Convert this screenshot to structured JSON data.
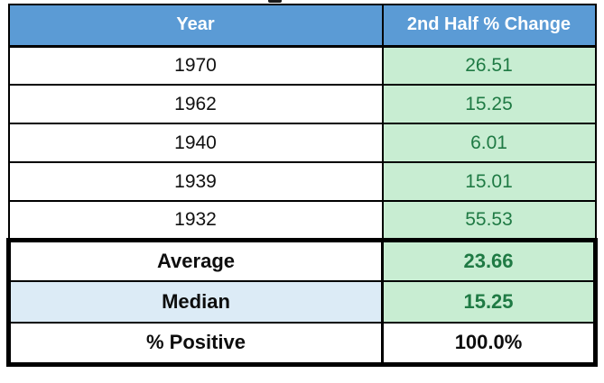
{
  "chart_data": {
    "type": "table",
    "columns": [
      "Year",
      "2nd Half % Change"
    ],
    "rows": [
      [
        "1970",
        "26.51"
      ],
      [
        "1962",
        "15.25"
      ],
      [
        "1940",
        "6.01"
      ],
      [
        "1939",
        "15.01"
      ],
      [
        "1932",
        "55.53"
      ]
    ],
    "summary": [
      [
        "Average",
        "23.66"
      ],
      [
        "Median",
        "15.25"
      ],
      [
        "% Positive",
        "100.0%"
      ]
    ]
  },
  "colors": {
    "header_bg": "#5b9bd5",
    "header_text": "#ffffff",
    "value_bg": "#c8edd2",
    "value_text": "#1f7a44",
    "median_bg": "#dcebf6",
    "label_text": "#0d0d0d",
    "border": "#000000"
  }
}
